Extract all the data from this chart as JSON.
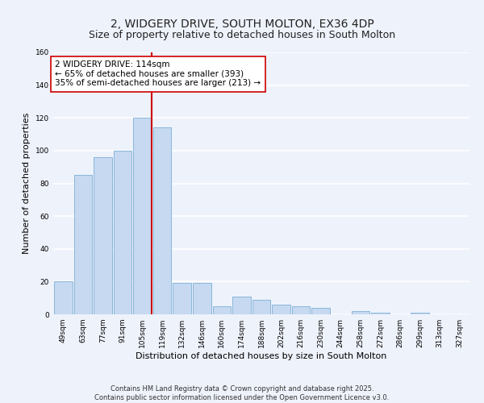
{
  "title": "2, WIDGERY DRIVE, SOUTH MOLTON, EX36 4DP",
  "subtitle": "Size of property relative to detached houses in South Molton",
  "xlabel": "Distribution of detached houses by size in South Molton",
  "ylabel": "Number of detached properties",
  "bar_labels": [
    "49sqm",
    "63sqm",
    "77sqm",
    "91sqm",
    "105sqm",
    "119sqm",
    "132sqm",
    "146sqm",
    "160sqm",
    "174sqm",
    "188sqm",
    "202sqm",
    "216sqm",
    "230sqm",
    "244sqm",
    "258sqm",
    "272sqm",
    "286sqm",
    "299sqm",
    "313sqm",
    "327sqm"
  ],
  "bar_values": [
    20,
    85,
    96,
    100,
    120,
    114,
    19,
    19,
    5,
    11,
    9,
    6,
    5,
    4,
    0,
    2,
    1,
    0,
    1,
    0,
    0
  ],
  "bar_color": "#c6d9f1",
  "bar_edgecolor": "#7bafd4",
  "vline_color": "#cc0000",
  "annotation_title": "2 WIDGERY DRIVE: 114sqm",
  "annotation_line1": "← 65% of detached houses are smaller (393)",
  "annotation_line2": "35% of semi-detached houses are larger (213) →",
  "annotation_box_color": "#ffffff",
  "annotation_box_edgecolor": "#cc0000",
  "ylim": [
    0,
    160
  ],
  "yticks": [
    0,
    20,
    40,
    60,
    80,
    100,
    120,
    140,
    160
  ],
  "background_color": "#eef2fb",
  "grid_color": "#ffffff",
  "footer_line1": "Contains HM Land Registry data © Crown copyright and database right 2025.",
  "footer_line2": "Contains public sector information licensed under the Open Government Licence v3.0.",
  "title_fontsize": 10,
  "xlabel_fontsize": 8,
  "ylabel_fontsize": 8,
  "tick_fontsize": 6.5,
  "annotation_fontsize": 7.5,
  "footer_fontsize": 6
}
